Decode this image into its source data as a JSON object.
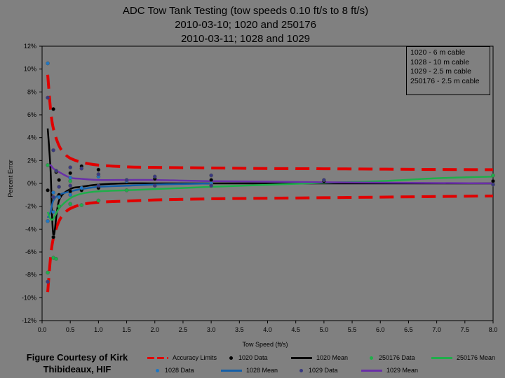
{
  "title_lines": [
    "ADC Tow Tank Testing (tow speeds 0.10 ft/s to 8 ft/s)",
    "2010-03-10; 1020 and 250176",
    "2010-03-11; 1028 and 1029"
  ],
  "courtesy": "Figure Courtesy of Kirk Thibideaux, HIF",
  "cable_notes": [
    "1020 - 6 m cable",
    "1028 - 10 m cable",
    "1029 - 2.5 m cable",
    "250176 - 2.5 m cable"
  ],
  "chart_data": {
    "type": "scatter",
    "xlabel": "Tow Speed (ft/s)",
    "ylabel": "Percent Error",
    "xlim": [
      0,
      8
    ],
    "ylim": [
      -12,
      12
    ],
    "x_ticks": [
      "0.0",
      "0.5",
      "1.0",
      "1.5",
      "2.0",
      "2.5",
      "3.0",
      "3.5",
      "4.0",
      "4.5",
      "5.0",
      "5.5",
      "6.0",
      "6.5",
      "7.0",
      "7.5",
      "8.0"
    ],
    "y_ticks": [
      "12%",
      "10%",
      "8%",
      "6%",
      "4%",
      "2%",
      "0%",
      "-2%",
      "-4%",
      "-6%",
      "-8%",
      "-10%",
      "-12%"
    ],
    "legend": [
      {
        "label": "Accuracy Limits",
        "kind": "dash",
        "color": "#e00000"
      },
      {
        "label": "1020 Data",
        "kind": "dot",
        "color": "#000000"
      },
      {
        "label": "1020 Mean",
        "kind": "line",
        "color": "#000000"
      },
      {
        "label": "250176 Data",
        "kind": "dot",
        "color": "#1fae4a"
      },
      {
        "label": "250176 Mean",
        "kind": "line",
        "color": "#1fae4a"
      },
      {
        "label": "1028 Data",
        "kind": "dot",
        "color": "#1f77c4"
      },
      {
        "label": "1028 Mean",
        "kind": "line",
        "color": "#1560a8"
      },
      {
        "label": "1029 Data",
        "kind": "dot",
        "color": "#3a3a80"
      },
      {
        "label": "1029 Mean",
        "kind": "line",
        "color": "#6a2fa8"
      }
    ],
    "series": [
      {
        "name": "Accuracy Limits",
        "kind": "dash",
        "color": "#e00000",
        "x": [
          0.1,
          0.15,
          0.2,
          0.3,
          0.4,
          0.5,
          0.7,
          1.0,
          1.5,
          2.0,
          3.0,
          4.0,
          5.0,
          6.0,
          7.0,
          8.0
        ],
        "y": [
          9.5,
          6.5,
          4.8,
          3.3,
          2.6,
          2.2,
          1.85,
          1.6,
          1.45,
          1.4,
          1.35,
          1.3,
          1.28,
          1.25,
          1.22,
          1.2
        ]
      },
      {
        "name": "Accuracy Limits",
        "kind": "dash",
        "color": "#e00000",
        "x": [
          0.1,
          0.15,
          0.2,
          0.3,
          0.4,
          0.5,
          0.7,
          1.0,
          1.5,
          2.0,
          3.0,
          4.0,
          5.0,
          6.0,
          7.0,
          8.0
        ],
        "y": [
          -9.5,
          -6.5,
          -4.8,
          -3.3,
          -2.6,
          -2.2,
          -1.85,
          -1.65,
          -1.55,
          -1.45,
          -1.35,
          -1.3,
          -1.25,
          -1.2,
          -1.15,
          -1.1
        ]
      },
      {
        "name": "1020 Mean",
        "kind": "line",
        "color": "#000000",
        "x": [
          0.1,
          0.15,
          0.2,
          0.3,
          0.5,
          0.7,
          1.0,
          1.5,
          2.0,
          3.0,
          5.0,
          8.0
        ],
        "y": [
          4.8,
          1.2,
          -4.5,
          -1.5,
          -0.5,
          -0.3,
          -0.1,
          0.0,
          0.0,
          0.0,
          0.0,
          0.0
        ]
      },
      {
        "name": "1028 Mean",
        "kind": "line",
        "color": "#1560a8",
        "x": [
          0.1,
          0.15,
          0.2,
          0.3,
          0.5,
          0.7,
          1.0,
          1.5,
          2.0,
          3.0
        ],
        "y": [
          -3.0,
          -2.5,
          -1.5,
          -1.0,
          -0.7,
          -0.5,
          -0.3,
          -0.2,
          -0.1,
          0.0
        ]
      },
      {
        "name": "250176 Mean",
        "kind": "line",
        "color": "#1fae4a",
        "x": [
          0.1,
          0.15,
          0.2,
          0.3,
          0.5,
          0.7,
          1.0,
          1.5,
          2.0,
          3.0,
          5.0,
          6.0,
          7.0,
          8.0
        ],
        "y": [
          -2.5,
          -3.1,
          -3.1,
          -2.2,
          -1.3,
          -0.9,
          -0.7,
          -0.6,
          -0.5,
          -0.3,
          0.05,
          0.2,
          0.45,
          0.6
        ]
      },
      {
        "name": "1029 Mean",
        "kind": "line",
        "color": "#6a2fa8",
        "x": [
          0.1,
          0.15,
          0.2,
          0.3,
          0.5,
          0.7,
          1.0,
          1.5,
          2.0,
          3.0,
          5.0,
          8.0
        ],
        "y": [
          1.5,
          1.6,
          1.3,
          1.0,
          0.5,
          0.4,
          0.3,
          0.3,
          0.3,
          0.2,
          0.1,
          0.0
        ]
      },
      {
        "name": "1020 Data",
        "kind": "dot",
        "color": "#000000",
        "x": [
          0.1,
          0.2,
          0.2,
          0.25,
          0.3,
          0.3,
          0.5,
          0.5,
          0.7,
          0.7,
          1.0,
          1.0,
          2.0,
          3.0,
          5.0,
          8.0
        ],
        "y": [
          -0.6,
          6.5,
          -4.7,
          1.0,
          -1.0,
          0.3,
          0.9,
          -0.7,
          1.5,
          -0.6,
          1.2,
          -0.4,
          0.4,
          0.3,
          0.2,
          0.2
        ]
      },
      {
        "name": "250176 Data",
        "kind": "dot",
        "color": "#1fae4a",
        "x": [
          0.1,
          0.1,
          0.2,
          0.25,
          0.3,
          0.5,
          0.5,
          0.7,
          1.0,
          1.5,
          8.0
        ],
        "y": [
          1.6,
          -7.8,
          -6.5,
          -6.6,
          -2.0,
          0.2,
          -1.8,
          -1.9,
          -1.5,
          -0.6,
          0.7
        ]
      },
      {
        "name": "1028 Data",
        "kind": "dot",
        "color": "#1f77c4",
        "x": [
          0.1,
          0.1,
          0.2,
          0.2,
          0.3,
          0.5,
          0.5,
          0.7,
          1.0,
          1.5,
          3.0
        ],
        "y": [
          10.5,
          -3.3,
          -2.5,
          -0.8,
          -1.2,
          0.5,
          -1.0,
          -0.4,
          0.6,
          0.2,
          0.0
        ]
      },
      {
        "name": "1029 Data",
        "kind": "dot",
        "color": "#3a3a80",
        "x": [
          0.1,
          0.1,
          0.2,
          0.2,
          0.25,
          0.3,
          0.5,
          0.5,
          0.7,
          1.0,
          1.0,
          1.5,
          2.0,
          2.0,
          3.0,
          3.0,
          5.0,
          8.0
        ],
        "y": [
          7.5,
          -8.6,
          2.9,
          -1.2,
          1.1,
          -0.3,
          1.4,
          -0.2,
          1.3,
          0.8,
          -0.2,
          0.3,
          0.6,
          -0.2,
          0.7,
          -0.2,
          0.3,
          -0.1
        ]
      }
    ]
  }
}
